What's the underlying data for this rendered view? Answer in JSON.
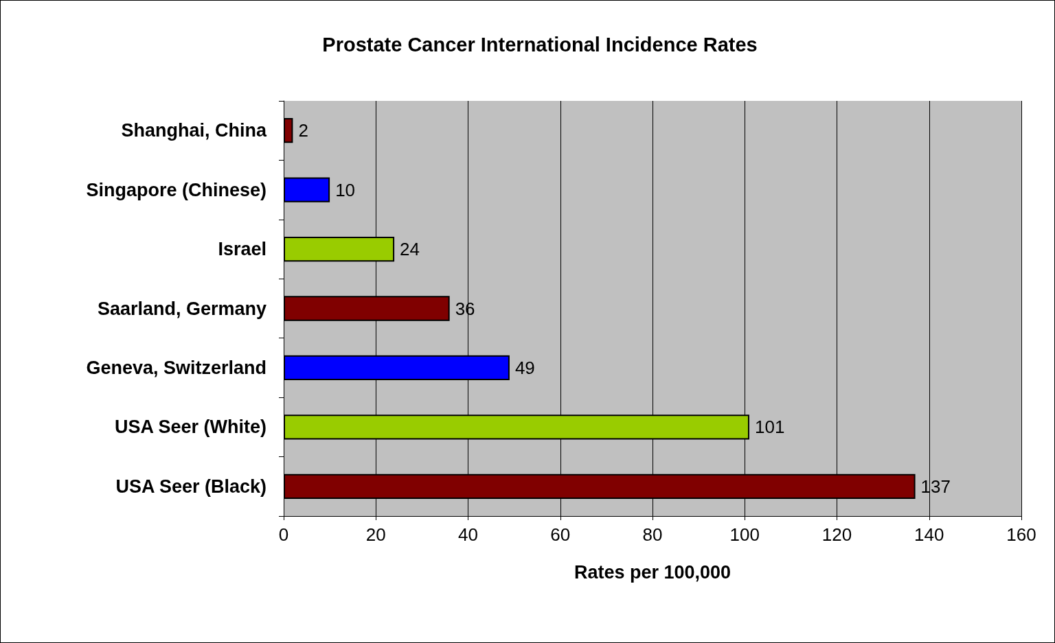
{
  "chart_data": {
    "type": "bar",
    "orientation": "horizontal",
    "title": "Prostate Cancer International Incidence Rates",
    "xlabel": "Rates per 100,000",
    "categories": [
      "Shanghai, China",
      "Singapore (Chinese)",
      "Israel",
      "Saarland, Germany",
      "Geneva, Switzerland",
      "USA Seer (White)",
      "USA Seer (Black)"
    ],
    "values": [
      2,
      10,
      24,
      36,
      49,
      101,
      137
    ],
    "colors": [
      "#800000",
      "#0000ff",
      "#99cc00",
      "#800000",
      "#0000ff",
      "#99cc00",
      "#800000"
    ],
    "xlim": [
      0,
      160
    ],
    "xticks": [
      0,
      20,
      40,
      60,
      80,
      100,
      120,
      140,
      160
    ],
    "grid": "x",
    "data_labels": true
  }
}
